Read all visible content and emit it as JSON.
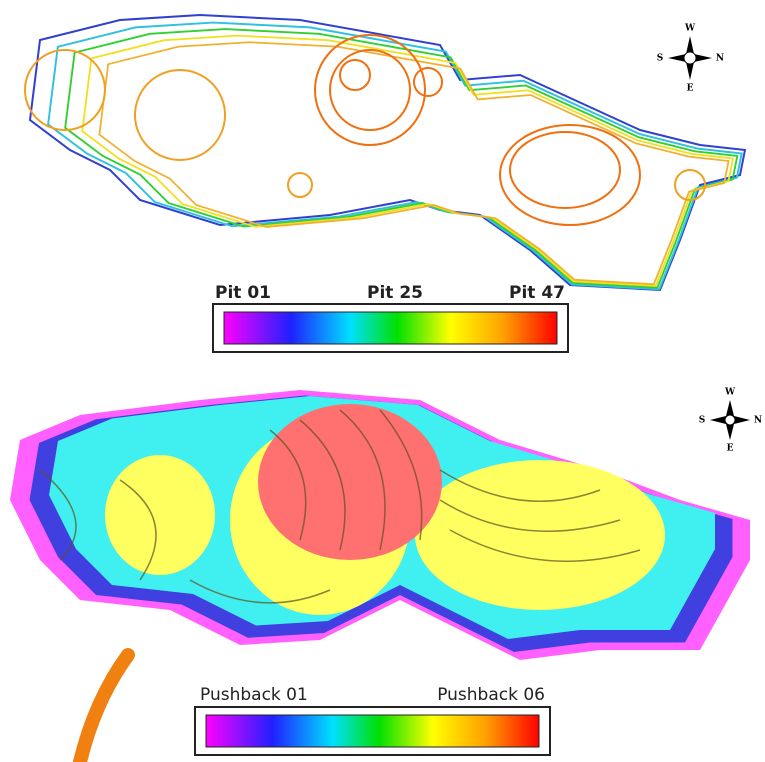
{
  "top_map": {
    "compass": {
      "w": "W",
      "n": "N",
      "s": "S",
      "e": "E"
    },
    "legend": {
      "labels": [
        "Pit 01",
        "Pit 25",
        "Pit 47"
      ]
    }
  },
  "bottom_map": {
    "compass": {
      "w": "W",
      "n": "N",
      "s": "S",
      "e": "E"
    },
    "legend": {
      "labels": [
        "Pushback 01",
        "Pushback 06"
      ]
    }
  }
}
